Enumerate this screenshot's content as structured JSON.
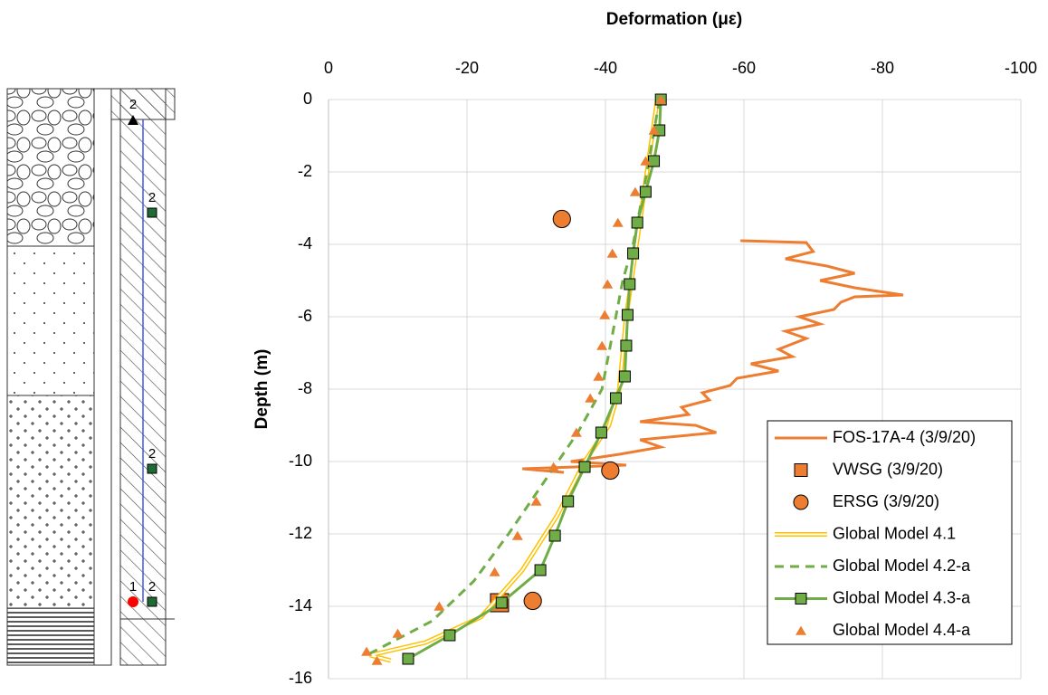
{
  "diagram": {
    "labels": [
      "2",
      "2",
      "2",
      "1",
      "2"
    ]
  },
  "chart_data": {
    "type": "line",
    "title": "Deformation (με)",
    "y_label": "Depth (m)",
    "xlim": [
      0,
      -100
    ],
    "xticks": [
      0,
      -20,
      -40,
      -60,
      -80,
      -100
    ],
    "ylim": [
      0,
      -16
    ],
    "yticks": [
      0,
      -2,
      -4,
      -6,
      -8,
      -10,
      -12,
      -14,
      -16
    ],
    "grid": true,
    "legend": "lower right",
    "series": [
      {
        "name": "FOS-17A-4 (3/9/20)",
        "color": "#ed7d31",
        "line": "solid",
        "marker": null,
        "x": [
          -59.5,
          -69,
          -70,
          -66,
          -72,
          -76,
          -71,
          -76,
          -83,
          -76,
          -74,
          -73,
          -68,
          -71,
          -66,
          -69,
          -65,
          -67,
          -61,
          -65,
          -59,
          -58,
          -54,
          -55,
          -51,
          -52,
          -45,
          -53,
          -56,
          -45,
          -48,
          -42,
          -35,
          -43,
          -28,
          -34
        ],
        "y": [
          -3.9,
          -3.95,
          -4.2,
          -4.4,
          -4.6,
          -4.8,
          -5.0,
          -5.2,
          -5.4,
          -5.45,
          -5.6,
          -5.8,
          -6.0,
          -6.2,
          -6.4,
          -6.6,
          -6.9,
          -7.1,
          -7.3,
          -7.5,
          -7.7,
          -7.9,
          -8.1,
          -8.3,
          -8.5,
          -8.7,
          -8.9,
          -9.0,
          -9.2,
          -9.4,
          -9.6,
          -9.8,
          -10.0,
          -10.1,
          -10.2,
          -10.3
        ]
      },
      {
        "name": "VWSG (3/9/20)",
        "color": "#ed7d31",
        "line": null,
        "marker": "square",
        "x": [
          -24.7
        ],
        "y": [
          -13.9
        ]
      },
      {
        "name": "ERSG (3/9/20)",
        "color": "#ed7d31",
        "line": null,
        "marker": "circle",
        "x": [
          -33.7,
          -40.7,
          -29.5
        ],
        "y": [
          -3.3,
          -10.25,
          -13.85
        ]
      },
      {
        "name": "Global Model 4.1",
        "color": "#ffc000",
        "line": "double",
        "marker": null,
        "x": [
          -47.5,
          -46,
          -44.5,
          -43,
          -42.5,
          -42,
          -40.5,
          -37,
          -33,
          -28,
          -22,
          -14,
          -6,
          -9
        ],
        "y": [
          0,
          -2,
          -4,
          -6,
          -7,
          -8,
          -9,
          -10,
          -11.5,
          -13,
          -14.3,
          -15,
          -15.35,
          -15.5
        ]
      },
      {
        "name": "Global Model 4.2-a",
        "color": "#70ad47",
        "line": "dashed",
        "marker": null,
        "x": [
          -47.8,
          -46,
          -44,
          -42.5,
          -41,
          -39.5,
          -36,
          -31,
          -26,
          -21,
          -15,
          -8,
          -6
        ],
        "y": [
          0,
          -2,
          -4,
          -5,
          -6.5,
          -8,
          -9.2,
          -10.6,
          -12,
          -13.3,
          -14.4,
          -15.1,
          -15.3
        ]
      },
      {
        "name": "Global Model 4.3-a",
        "color": "#70ad47",
        "line": "solid",
        "marker": "square",
        "x": [
          -48,
          -47.8,
          -47,
          -45.8,
          -44.6,
          -44,
          -43.5,
          -43.2,
          -43,
          -42.8,
          -41.5,
          -39.4,
          -37,
          -34.6,
          -32.7,
          -30.6,
          -25,
          -17.5,
          -11.5
        ],
        "y": [
          0,
          -0.85,
          -1.7,
          -2.55,
          -3.4,
          -4.25,
          -5.1,
          -5.95,
          -6.8,
          -7.65,
          -8.25,
          -9.2,
          -10.15,
          -11.1,
          -12.05,
          -13.0,
          -13.9,
          -14.8,
          -15.45
        ]
      },
      {
        "name": "Global Model 4.4-a",
        "color": "#ed7d31",
        "line": null,
        "marker": "triangle",
        "x": [
          -48,
          -47,
          -45.8,
          -44.3,
          -41.8,
          -41,
          -40.3,
          -39.9,
          -39.5,
          -39,
          -37.8,
          -35.8,
          -32.5,
          -30,
          -27.3,
          -24,
          -16,
          -10,
          -5.5,
          -7
        ],
        "y": [
          0,
          -0.85,
          -1.7,
          -2.55,
          -3.4,
          -4.25,
          -5.1,
          -5.95,
          -6.8,
          -7.65,
          -8.25,
          -9.2,
          -10.15,
          -11.1,
          -12.05,
          -13.05,
          -14.0,
          -14.75,
          -15.25,
          -15.5
        ]
      }
    ]
  }
}
